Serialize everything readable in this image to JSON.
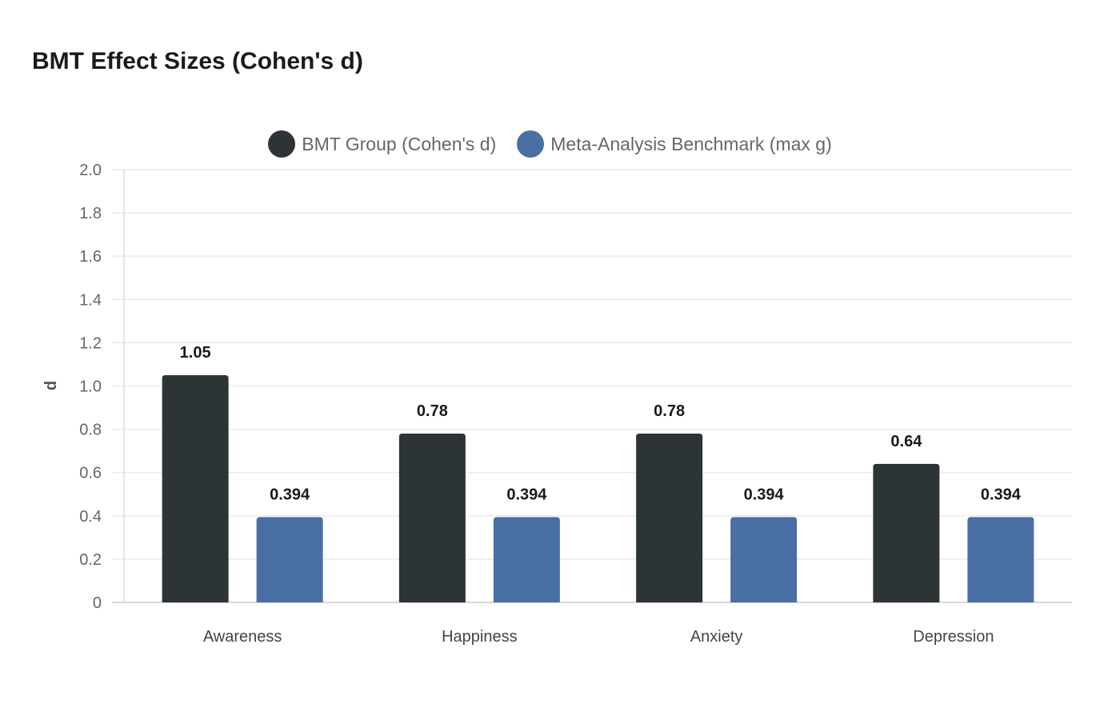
{
  "chart_data": {
    "type": "bar",
    "title": "BMT Effect Sizes (Cohen's d)",
    "xlabel": "",
    "ylabel": "d",
    "ylim": [
      0,
      2.0
    ],
    "yticks": [
      "0",
      "0.2",
      "0.4",
      "0.6",
      "0.8",
      "1.0",
      "1.2",
      "1.4",
      "1.6",
      "1.8",
      "2.0"
    ],
    "grid": true,
    "legend_position": "top-center",
    "categories": [
      "Awareness",
      "Happiness",
      "Anxiety",
      "Depression"
    ],
    "series": [
      {
        "name": "BMT Group (Cohen's d)",
        "color": "#2d3436",
        "values": [
          1.05,
          0.78,
          0.78,
          0.64
        ],
        "labels": [
          "1.05",
          "0.78",
          "0.78",
          "0.64"
        ]
      },
      {
        "name": "Meta-Analysis Benchmark (max g)",
        "color": "#4a6fa5",
        "values": [
          0.394,
          0.394,
          0.394,
          0.394
        ],
        "labels": [
          "0.394",
          "0.394",
          "0.394",
          "0.394"
        ]
      }
    ]
  }
}
